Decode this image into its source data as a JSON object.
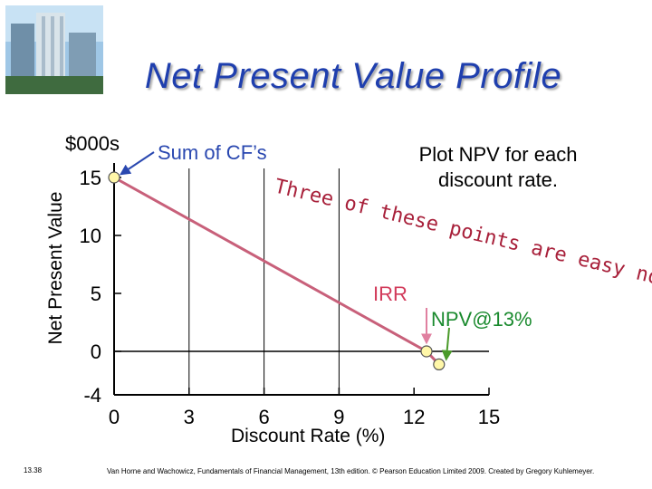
{
  "slide": {
    "title": "Net Present Value Profile",
    "slide_number": "13.38",
    "footer": "Van Horne and Wachowicz, Fundamentals of Financial Management, 13th edition. © Pearson Education Limited 2009. Created by Gregory Kuhlemeyer."
  },
  "annotations": {
    "units": "$000s",
    "sum_of_cfs": "Sum of CF’s",
    "plot_note_line1": "Plot NPV for each",
    "plot_note_line2": "discount rate.",
    "three_of_these": "Three of these points are easy now!",
    "irr": "IRR",
    "npv_at_13": "NPV@13%"
  },
  "colors": {
    "title": "#1f3fae",
    "curve": "#c8607a",
    "point_fill": "#fff7a8",
    "annotation_red": "#a8203a",
    "irr_text": "#d23a5a",
    "npv13_text": "#1a8a2e",
    "arrow_blue": "#2a48b0",
    "arrow_pink": "#e080a0",
    "arrow_green": "#4a9a2a"
  },
  "chart_data": {
    "type": "line",
    "title": "",
    "xlabel": "Discount Rate (%)",
    "ylabel": "Net Present Value",
    "x_ticks": [
      0,
      3,
      6,
      9,
      12,
      15
    ],
    "y_ticks": [
      15,
      10,
      5,
      0,
      -4
    ],
    "xlim": [
      0,
      15
    ],
    "ylim": [
      -4,
      15
    ],
    "series": [
      {
        "x": [
          0,
          12.5,
          13
        ],
        "y": [
          15,
          0,
          -1.2
        ]
      }
    ]
  }
}
